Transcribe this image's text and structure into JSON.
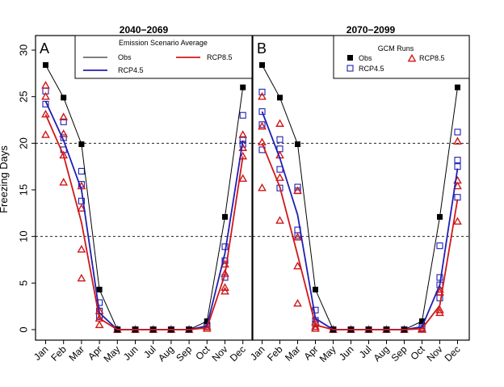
{
  "figure": {
    "ylabel": "Freezing Days",
    "colors": {
      "obs": "#000000",
      "rcp45": "#1f1fb4",
      "rcp85": "#d01818"
    }
  },
  "chart_data": [
    {
      "type": "line",
      "panel_letter": "A",
      "title": "2040−2069",
      "legend_title": "Emission Scenario Average",
      "legend_placement": "top-right",
      "categories": [
        "Jan",
        "Feb",
        "Mar",
        "Apr",
        "May",
        "Jun",
        "Jul",
        "Aug",
        "Sep",
        "Oct",
        "Nov",
        "Dec"
      ],
      "ylim": [
        0,
        30
      ],
      "yticks": [
        0,
        5,
        10,
        15,
        20,
        25,
        30
      ],
      "reference_lines": [
        10,
        20
      ],
      "series": [
        {
          "name": "Obs",
          "style": "line-square",
          "values": [
            28.4,
            24.9,
            19.9,
            4.3,
            0,
            0,
            0,
            0,
            0,
            0.9,
            12.1,
            26.0
          ]
        },
        {
          "name": "RCP4.5",
          "style": "line",
          "values": [
            24.5,
            20.3,
            15.0,
            1.8,
            0,
            0,
            0,
            0,
            0,
            0.4,
            8.2,
            20.3
          ]
        },
        {
          "name": "RCP8.5",
          "style": "line",
          "values": [
            23.1,
            18.7,
            11.5,
            1.2,
            0,
            0,
            0,
            0,
            0,
            0.2,
            5.9,
            18.6
          ]
        }
      ],
      "gcm_runs": {
        "rcp45": [
          [
            25.6,
            24.2
          ],
          [
            22.3,
            20.6,
            19.3
          ],
          [
            17.0,
            15.6,
            13.8
          ],
          [
            2.9,
            2.0,
            1.4
          ],
          [
            0
          ],
          [
            0
          ],
          [
            0
          ],
          [
            0
          ],
          [
            0
          ],
          [
            0.5,
            0.3
          ],
          [
            8.9,
            7.4,
            5.6
          ],
          [
            23.0,
            20.4,
            19.9
          ]
        ],
        "rcp85": [
          [
            26.2,
            25.0,
            23.1,
            20.9
          ],
          [
            22.8,
            21.0,
            18.7,
            15.8
          ],
          [
            15.4,
            13.0,
            8.6,
            5.5
          ],
          [
            2.0,
            1.2,
            0.5
          ],
          [
            0
          ],
          [
            0
          ],
          [
            0
          ],
          [
            0
          ],
          [
            0
          ],
          [
            0.3,
            0.1
          ],
          [
            7.0,
            6.0,
            4.5,
            4.1
          ],
          [
            20.9,
            19.5,
            18.6,
            16.2
          ]
        ]
      }
    },
    {
      "type": "line",
      "panel_letter": "B",
      "title": "2070−2099",
      "legend_title": "GCM Runs",
      "legend_placement": "top-right",
      "categories": [
        "Jan",
        "Feb",
        "Mar",
        "Apr",
        "May",
        "Jun",
        "Jul",
        "Aug",
        "Sep",
        "Oct",
        "Nov",
        "Dec"
      ],
      "ylim": [
        0,
        30
      ],
      "yticks": [
        0,
        5,
        10,
        15,
        20,
        25,
        30
      ],
      "reference_lines": [
        10,
        20
      ],
      "series": [
        {
          "name": "Obs",
          "style": "line-square",
          "values": [
            28.4,
            24.9,
            19.9,
            4.3,
            0,
            0,
            0,
            0,
            0,
            0.9,
            12.1,
            26.0
          ]
        },
        {
          "name": "RCP4.5",
          "style": "line",
          "values": [
            23.4,
            18.4,
            12.3,
            1.2,
            0,
            0,
            0,
            0,
            0,
            0.3,
            4.8,
            17.3
          ]
        },
        {
          "name": "RCP8.5",
          "style": "line",
          "values": [
            20.0,
            15.3,
            8.0,
            0.5,
            0,
            0,
            0,
            0,
            0,
            0.1,
            2.6,
            14.0
          ]
        }
      ],
      "gcm_runs": {
        "rcp45": [
          [
            25.5,
            23.4,
            22.0,
            19.3
          ],
          [
            20.4,
            19.4,
            17.2,
            15.2
          ],
          [
            15.3,
            14.9,
            10.7,
            10.1
          ],
          [
            2.1,
            1.0,
            0.6
          ],
          [
            0
          ],
          [
            0
          ],
          [
            0
          ],
          [
            0
          ],
          [
            0
          ],
          [
            0.4,
            0.2
          ],
          [
            9.0,
            5.6,
            4.8,
            3.4
          ],
          [
            21.2,
            18.2,
            17.5,
            14.2
          ]
        ],
        "rcp85": [
          [
            25.0,
            21.8,
            20.1,
            15.2
          ],
          [
            22.1,
            18.7,
            16.3,
            11.7
          ],
          [
            14.9,
            9.9,
            6.8,
            2.8
          ],
          [
            0.8,
            0.3,
            0.1
          ],
          [
            0
          ],
          [
            0
          ],
          [
            0
          ],
          [
            0
          ],
          [
            0
          ],
          [
            0.1,
            0.0
          ],
          [
            4.3,
            4.0,
            2.1,
            1.8
          ],
          [
            20.2,
            16.0,
            15.4,
            11.6
          ]
        ]
      }
    }
  ]
}
